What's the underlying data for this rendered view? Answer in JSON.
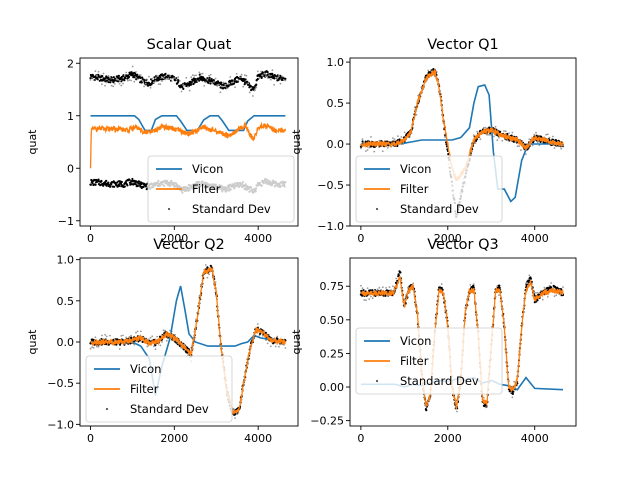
{
  "colors": {
    "vicon": "#1f77b4",
    "filter": "#ff7f0e",
    "std": "#000000"
  },
  "chart_data": [
    {
      "type": "line",
      "title": "Scalar Quat",
      "ylabel": "quat",
      "xlim": [
        -250,
        4950
      ],
      "ylim": [
        -1.1,
        2.1
      ],
      "xticks": [
        0,
        2000,
        4000
      ],
      "yticks": [
        -1,
        0,
        1,
        2
      ],
      "legend": {
        "placement": "lower-right",
        "entries": [
          "Vicon",
          "Filter",
          "Standard Dev"
        ]
      },
      "series": [
        {
          "name": "Vicon",
          "x": [
            0,
            600,
            1050,
            1150,
            1300,
            1450,
            1550,
            1700,
            1850,
            2050,
            2150,
            2300,
            2550,
            2700,
            2850,
            3050,
            3150,
            3300,
            3650,
            3750,
            3900,
            4000,
            4650
          ],
          "y": [
            1.0,
            1.0,
            1.0,
            0.93,
            0.72,
            0.72,
            0.93,
            1.0,
            1.0,
            1.0,
            0.9,
            0.72,
            0.72,
            0.92,
            1.0,
            1.0,
            0.9,
            0.72,
            0.72,
            0.9,
            1.0,
            1.0,
            1.0
          ]
        },
        {
          "name": "Filter",
          "x": [
            0,
            20,
            50,
            500,
            900,
            1100,
            1300,
            1500,
            1700,
            1900,
            2100,
            2300,
            2500,
            2700,
            2900,
            3100,
            3300,
            3500,
            3700,
            3800,
            3900,
            4000,
            4200,
            4400,
            4650
          ],
          "y": [
            0.0,
            0.7,
            0.75,
            0.75,
            0.73,
            0.78,
            0.68,
            0.7,
            0.8,
            0.76,
            0.72,
            0.66,
            0.7,
            0.8,
            0.72,
            0.68,
            0.62,
            0.72,
            0.82,
            0.65,
            0.55,
            0.78,
            0.82,
            0.72,
            0.72
          ]
        },
        {
          "name": "Standard Dev",
          "x": [
            0,
            200,
            500,
            800,
            1000,
            1200,
            1400,
            1600,
            1800,
            2000,
            2200,
            2400,
            2600,
            2800,
            3000,
            3200,
            3400,
            3600,
            3800,
            3900,
            4000,
            4200,
            4400,
            4650
          ],
          "y": [
            1.75,
            1.72,
            1.68,
            1.72,
            1.8,
            1.68,
            1.62,
            1.72,
            1.75,
            1.7,
            1.55,
            1.62,
            1.73,
            1.68,
            1.62,
            1.55,
            1.65,
            1.72,
            1.55,
            1.5,
            1.75,
            1.8,
            1.72,
            1.72
          ],
          "y_lower": [
            -0.27,
            -0.27,
            -0.3,
            -0.3,
            -0.25,
            -0.32,
            -0.35,
            -0.3,
            -0.28,
            -0.3,
            -0.42,
            -0.35,
            -0.3,
            -0.33,
            -0.36,
            -0.4,
            -0.35,
            -0.3,
            -0.4,
            -0.45,
            -0.3,
            -0.25,
            -0.3,
            -0.3
          ]
        }
      ]
    },
    {
      "type": "line",
      "title": "Vector Q1",
      "ylabel": "quat",
      "xlim": [
        -250,
        4950
      ],
      "ylim": [
        -1.0,
        1.05
      ],
      "xticks": [
        0,
        2000,
        4000
      ],
      "yticks": [
        -1.0,
        -0.5,
        0.0,
        0.5,
        1.0
      ],
      "legend": {
        "placement": "lower-left",
        "entries": [
          "Vicon",
          "Filter",
          "Standard Dev"
        ]
      },
      "series": [
        {
          "name": "Vicon",
          "x": [
            0,
            800,
            1000,
            1200,
            1400,
            1700,
            2100,
            2300,
            2500,
            2600,
            2700,
            2850,
            2950,
            3050,
            3150,
            3300,
            3450,
            3550,
            3700,
            3850,
            4650
          ],
          "y": [
            0.0,
            0.0,
            0.01,
            0.03,
            0.05,
            0.05,
            0.05,
            0.08,
            0.2,
            0.5,
            0.7,
            0.72,
            0.6,
            -0.1,
            -0.55,
            -0.55,
            -0.7,
            -0.65,
            -0.2,
            0.0,
            0.0
          ]
        },
        {
          "name": "Filter",
          "x": [
            0,
            800,
            1000,
            1150,
            1300,
            1500,
            1700,
            1800,
            1900,
            2100,
            2200,
            2400,
            2600,
            2800,
            3000,
            3200,
            3400,
            3600,
            3700,
            3800,
            4000,
            4200,
            4400,
            4650
          ],
          "y": [
            0.0,
            0.0,
            0.05,
            0.15,
            0.5,
            0.8,
            0.88,
            0.7,
            0.3,
            -0.3,
            -0.45,
            -0.3,
            0.05,
            0.15,
            0.17,
            0.12,
            0.08,
            0.05,
            0.0,
            -0.05,
            0.08,
            0.05,
            0.02,
            0.0
          ]
        },
        {
          "name": "Standard Dev",
          "x": [
            0,
            800,
            1000,
            1150,
            1300,
            1500,
            1700,
            1800,
            1900,
            2100,
            2200,
            2400,
            2600,
            2800,
            3000,
            3200,
            3400,
            3600,
            3700,
            3800,
            4000,
            4200,
            4400,
            4650
          ],
          "y": [
            0.0,
            0.0,
            0.05,
            0.15,
            0.5,
            0.82,
            0.9,
            0.7,
            0.3,
            -0.5,
            -0.9,
            -0.4,
            0.05,
            0.15,
            0.17,
            0.12,
            0.08,
            0.05,
            0.0,
            -0.05,
            0.08,
            0.05,
            0.02,
            0.0
          ]
        }
      ]
    },
    {
      "type": "line",
      "title": "Vector Q2",
      "ylabel": "quat",
      "xlim": [
        -250,
        4950
      ],
      "ylim": [
        -1.02,
        1.02
      ],
      "xticks": [
        0,
        2000,
        4000
      ],
      "yticks": [
        -1.0,
        -0.5,
        0.0,
        0.5,
        1.0
      ],
      "legend": {
        "placement": "lower-left",
        "entries": [
          "Vicon",
          "Filter",
          "Standard Dev"
        ]
      },
      "series": [
        {
          "name": "Vicon",
          "x": [
            0,
            1000,
            1200,
            1400,
            1550,
            1700,
            1900,
            2050,
            2150,
            2250,
            2350,
            2500,
            2800,
            3200,
            3450,
            3600,
            3750,
            3900,
            4050,
            4650
          ],
          "y": [
            0.0,
            0.0,
            -0.05,
            -0.2,
            -0.65,
            -0.3,
            0.05,
            0.5,
            0.68,
            0.4,
            0.1,
            0.0,
            -0.05,
            -0.05,
            -0.05,
            -0.02,
            0.0,
            0.08,
            0.05,
            0.0
          ]
        },
        {
          "name": "Filter",
          "x": [
            0,
            800,
            1000,
            1200,
            1400,
            1600,
            1800,
            2000,
            2200,
            2400,
            2550,
            2700,
            2900,
            3000,
            3100,
            3250,
            3400,
            3550,
            3650,
            3800,
            3950,
            4100,
            4300,
            4650
          ],
          "y": [
            0.0,
            0.0,
            0.02,
            0.05,
            -0.02,
            0.0,
            0.1,
            0.05,
            -0.05,
            -0.15,
            0.3,
            0.85,
            0.88,
            0.6,
            0.0,
            -0.6,
            -0.85,
            -0.82,
            -0.5,
            -0.1,
            0.15,
            0.12,
            0.02,
            0.0
          ]
        },
        {
          "name": "Standard Dev",
          "x": [
            0,
            800,
            1000,
            1200,
            1400,
            1600,
            1800,
            2000,
            2200,
            2400,
            2550,
            2700,
            2900,
            3000,
            3100,
            3250,
            3400,
            3550,
            3650,
            3800,
            3950,
            4100,
            4300,
            4650
          ],
          "y": [
            0.0,
            0.0,
            0.02,
            0.05,
            -0.02,
            0.0,
            0.1,
            0.05,
            -0.05,
            -0.15,
            0.3,
            0.85,
            0.9,
            0.6,
            0.0,
            -0.6,
            -0.88,
            -0.82,
            -0.5,
            -0.1,
            0.15,
            0.12,
            0.02,
            0.0
          ]
        }
      ]
    },
    {
      "type": "line",
      "title": "Vector Q3",
      "ylabel": "quat",
      "xlim": [
        -250,
        4950
      ],
      "ylim": [
        -0.29,
        0.96
      ],
      "xticks": [
        0,
        2000,
        4000
      ],
      "yticks": [
        -0.25,
        0.0,
        0.25,
        0.5,
        0.75
      ],
      "legend": {
        "placement": "center-left",
        "entries": [
          "Vicon",
          "Filter",
          "Standard Dev"
        ]
      },
      "series": [
        {
          "name": "Vicon",
          "x": [
            0,
            500,
            800,
            1000,
            1200,
            1400,
            1600,
            1800,
            2000,
            2200,
            2400,
            2600,
            2800,
            3000,
            3200,
            3400,
            3600,
            3800,
            4000,
            4650
          ],
          "y": [
            0.02,
            0.02,
            0.02,
            0.0,
            0.02,
            0.01,
            0.03,
            0.05,
            0.04,
            0.06,
            0.05,
            0.07,
            0.03,
            0.05,
            0.02,
            0.01,
            -0.02,
            0.07,
            -0.01,
            -0.02
          ]
        },
        {
          "name": "Filter",
          "x": [
            0,
            500,
            750,
            850,
            900,
            1000,
            1100,
            1200,
            1300,
            1400,
            1500,
            1600,
            1700,
            1800,
            1900,
            2000,
            2100,
            2200,
            2300,
            2400,
            2500,
            2600,
            2700,
            2800,
            2900,
            3000,
            3100,
            3200,
            3300,
            3400,
            3500,
            3600,
            3700,
            3800,
            3900,
            4000,
            4200,
            4400,
            4650
          ],
          "y": [
            0.7,
            0.7,
            0.7,
            0.78,
            0.82,
            0.6,
            0.72,
            0.75,
            0.55,
            0.1,
            -0.15,
            -0.05,
            0.4,
            0.72,
            0.7,
            0.45,
            0.0,
            -0.15,
            0.05,
            0.55,
            0.72,
            0.72,
            0.4,
            -0.1,
            -0.12,
            0.3,
            0.72,
            0.72,
            0.45,
            0.0,
            -0.02,
            0.05,
            0.45,
            0.72,
            0.78,
            0.65,
            0.7,
            0.72,
            0.7
          ]
        },
        {
          "name": "Standard Dev",
          "x": [
            0,
            500,
            750,
            850,
            900,
            1000,
            1100,
            1200,
            1300,
            1400,
            1500,
            1600,
            1700,
            1800,
            1900,
            2000,
            2100,
            2200,
            2300,
            2400,
            2500,
            2600,
            2700,
            2800,
            2900,
            3000,
            3100,
            3200,
            3300,
            3400,
            3500,
            3600,
            3700,
            3800,
            3900,
            4000,
            4200,
            4400,
            4650
          ],
          "y": [
            0.7,
            0.7,
            0.7,
            0.8,
            0.86,
            0.6,
            0.72,
            0.76,
            0.55,
            0.1,
            -0.17,
            -0.05,
            0.4,
            0.74,
            0.7,
            0.45,
            0.0,
            -0.17,
            0.05,
            0.55,
            0.72,
            0.74,
            0.4,
            -0.12,
            -0.14,
            0.3,
            0.72,
            0.74,
            0.45,
            0.0,
            -0.04,
            0.05,
            0.45,
            0.74,
            0.82,
            0.65,
            0.7,
            0.74,
            0.7
          ]
        }
      ]
    }
  ]
}
